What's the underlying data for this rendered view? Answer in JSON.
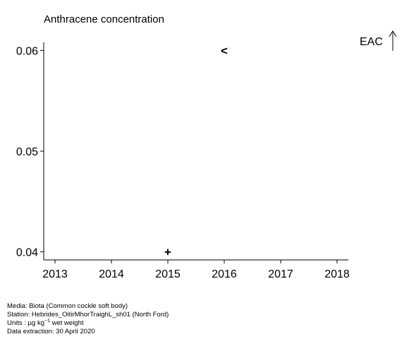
{
  "chart_data": {
    "type": "scatter",
    "title": "Anthracene concentration",
    "xlabel": "",
    "ylabel": "",
    "x_ticks": [
      "2013",
      "2014",
      "2015",
      "2016",
      "2017",
      "2018"
    ],
    "xlim": [
      2012.8,
      2018.2
    ],
    "y_ticks": [
      "0.04",
      "0.05",
      "0.06"
    ],
    "ylim": [
      0.0392,
      0.0608
    ],
    "grid": false,
    "points": [
      {
        "x": 2015,
        "y": 0.04,
        "marker": "+"
      },
      {
        "x": 2016,
        "y": 0.06,
        "marker": "<"
      }
    ],
    "annotation": {
      "label": "EAC",
      "arrow": "up"
    }
  },
  "footer": {
    "media": "Media: Biota (Common cockle soft body)",
    "station": "Station: Hebrides_OitirMhorTraighL_sh01 (North Ford)",
    "units_prefix": "Units : µg kg",
    "units_sup": "−1",
    "units_suffix": " wet weight",
    "extraction": "Data extraction: 30 April 2020"
  }
}
